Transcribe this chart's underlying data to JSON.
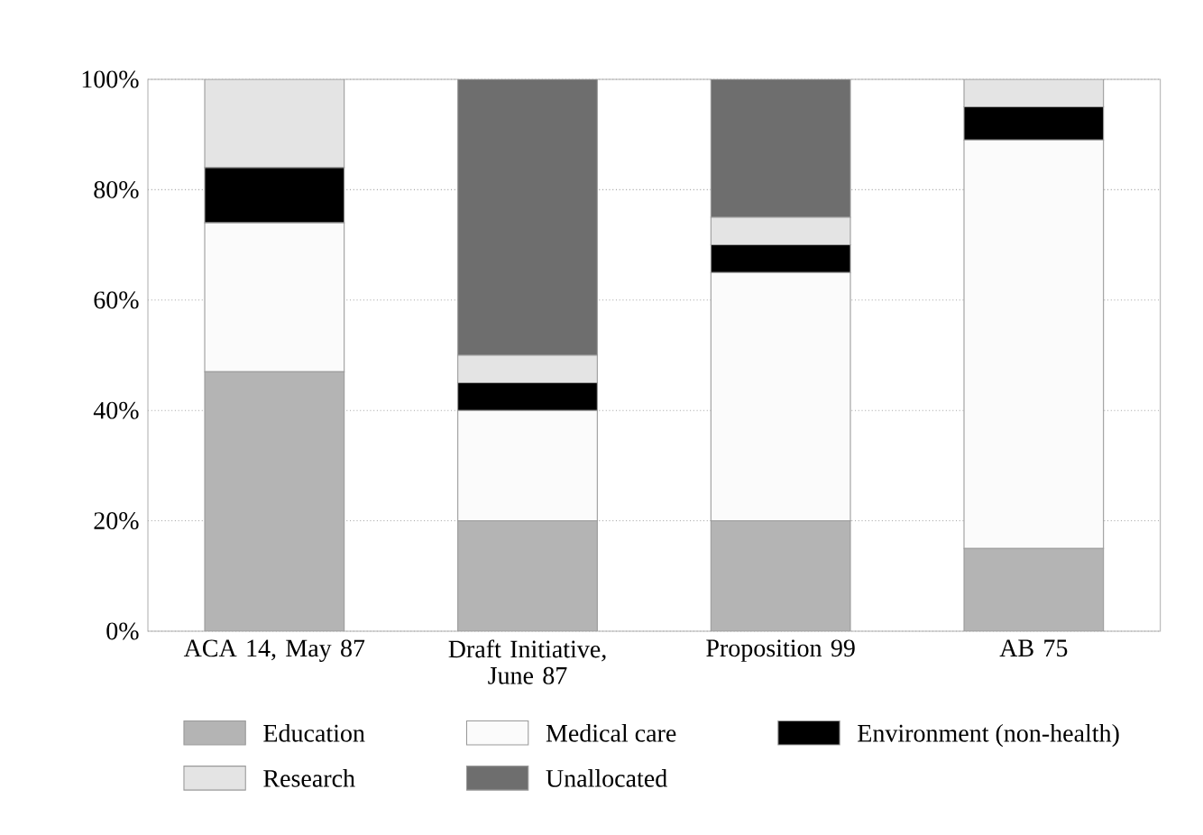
{
  "chart_data": {
    "type": "bar",
    "stacked": true,
    "categories": [
      "ACA 14, May 87",
      "Draft Initiative, June 87",
      "Proposition 99",
      "AB 75"
    ],
    "series": [
      {
        "name": "Education",
        "color": "#b4b4b4",
        "values": [
          47,
          20,
          20,
          15
        ]
      },
      {
        "name": "Medical care",
        "color": "#fbfbfb",
        "values": [
          27,
          20,
          45,
          74
        ]
      },
      {
        "name": "Environment (non-health)",
        "color": "#000000",
        "values": [
          10,
          5,
          5,
          6
        ]
      },
      {
        "name": "Research",
        "color": "#e4e4e4",
        "values": [
          16,
          5,
          5,
          5
        ]
      },
      {
        "name": "Unallocated",
        "color": "#6e6e6e",
        "values": [
          0,
          50,
          25,
          0
        ]
      }
    ],
    "ylim": [
      0,
      100
    ],
    "yticks": [
      {
        "value": 0,
        "label": "0%"
      },
      {
        "value": 20,
        "label": "20%"
      },
      {
        "value": 40,
        "label": "40%"
      },
      {
        "value": 60,
        "label": "60%"
      },
      {
        "value": 80,
        "label": "80%"
      },
      {
        "value": 100,
        "label": "100%"
      }
    ],
    "grid": "y",
    "legend": "bottom"
  }
}
